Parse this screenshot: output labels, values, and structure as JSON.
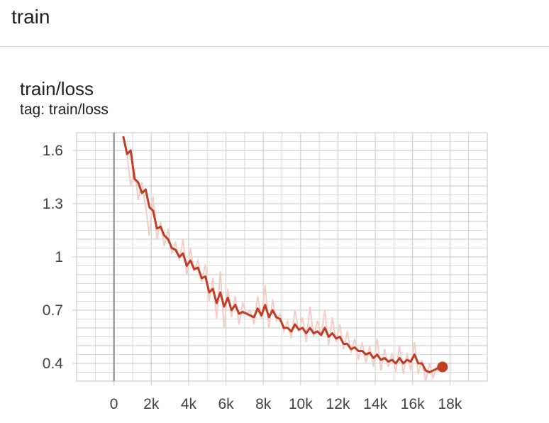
{
  "section": {
    "title": "train"
  },
  "card": {
    "title": "train/loss",
    "subtitle": "tag: train/loss"
  },
  "colors": {
    "smoothed_line": "#c23b22",
    "raw_line": "#f1cfc8",
    "grid": "#d0d0d0",
    "zero_axis": "#9e9e9e",
    "axis_box": "#cccccc"
  },
  "chart_data": {
    "type": "line",
    "title": "train/loss",
    "xlabel": "",
    "ylabel": "",
    "xlim": [
      -2000,
      20000
    ],
    "ylim": [
      0.3,
      1.7
    ],
    "x_ticks": [
      0,
      2000,
      4000,
      6000,
      8000,
      10000,
      12000,
      14000,
      16000,
      18000
    ],
    "x_tick_labels": [
      "0",
      "2k",
      "4k",
      "6k",
      "8k",
      "10k",
      "12k",
      "14k",
      "16k",
      "18k"
    ],
    "y_ticks": [
      0.4,
      0.7,
      1.0,
      1.3,
      1.6
    ],
    "y_tick_labels": [
      "0.4",
      "0.7",
      "1",
      "1.3",
      "1.6"
    ],
    "grid": true,
    "legend": "none",
    "series": [
      {
        "role": "raw",
        "x": [
          500,
          700,
          900,
          1100,
          1300,
          1500,
          1700,
          1900,
          2100,
          2300,
          2500,
          2700,
          2900,
          3100,
          3300,
          3500,
          3700,
          3900,
          4100,
          4300,
          4500,
          4700,
          4900,
          5100,
          5300,
          5500,
          5700,
          5900,
          6100,
          6300,
          6500,
          6700,
          6900,
          7100,
          7300,
          7500,
          7700,
          7900,
          8100,
          8300,
          8500,
          8700,
          8900,
          9100,
          9300,
          9500,
          9700,
          9900,
          10100,
          10300,
          10500,
          10700,
          10900,
          11100,
          11300,
          11500,
          11700,
          11900,
          12100,
          12300,
          12500,
          12700,
          12900,
          13100,
          13300,
          13500,
          13700,
          13900,
          14100,
          14300,
          14500,
          14700,
          14900,
          15100,
          15300,
          15500,
          15700,
          15900,
          16100,
          16300,
          16500,
          16700,
          16900,
          17100,
          17300,
          17500
        ],
        "values": [
          1.68,
          1.58,
          1.4,
          1.5,
          1.32,
          1.42,
          1.28,
          1.12,
          1.34,
          1.1,
          1.2,
          1.06,
          1.16,
          1.02,
          1.08,
          0.98,
          1.1,
          0.9,
          1.05,
          0.92,
          0.98,
          0.86,
          0.96,
          0.75,
          0.88,
          0.65,
          0.92,
          0.6,
          0.82,
          0.66,
          0.78,
          0.62,
          0.74,
          0.68,
          0.7,
          0.62,
          0.78,
          0.65,
          0.84,
          0.6,
          0.76,
          0.64,
          0.68,
          0.58,
          0.64,
          0.54,
          0.7,
          0.58,
          0.66,
          0.52,
          0.72,
          0.55,
          0.64,
          0.56,
          0.7,
          0.5,
          0.66,
          0.52,
          0.62,
          0.48,
          0.58,
          0.46,
          0.54,
          0.42,
          0.52,
          0.4,
          0.5,
          0.38,
          0.54,
          0.36,
          0.48,
          0.38,
          0.46,
          0.35,
          0.5,
          0.34,
          0.46,
          0.36,
          0.52,
          0.34,
          0.42,
          0.3,
          0.4,
          0.32,
          0.38,
          0.37
        ]
      },
      {
        "role": "smoothed",
        "x": [
          500,
          700,
          900,
          1100,
          1300,
          1500,
          1700,
          1900,
          2100,
          2300,
          2500,
          2700,
          2900,
          3100,
          3300,
          3500,
          3700,
          3900,
          4100,
          4300,
          4500,
          4700,
          4900,
          5100,
          5300,
          5500,
          5700,
          5900,
          6100,
          6300,
          6500,
          6700,
          6900,
          7100,
          7300,
          7500,
          7700,
          7900,
          8100,
          8300,
          8500,
          8700,
          8900,
          9100,
          9300,
          9500,
          9700,
          9900,
          10100,
          10300,
          10500,
          10700,
          10900,
          11100,
          11300,
          11500,
          11700,
          11900,
          12100,
          12300,
          12500,
          12700,
          12900,
          13100,
          13300,
          13500,
          13700,
          13900,
          14100,
          14300,
          14500,
          14700,
          14900,
          15100,
          15300,
          15500,
          15700,
          15900,
          16100,
          16300,
          16500,
          16700,
          16900,
          17100,
          17300,
          17500
        ],
        "values": [
          1.68,
          1.58,
          1.6,
          1.44,
          1.42,
          1.36,
          1.38,
          1.28,
          1.26,
          1.16,
          1.17,
          1.12,
          1.1,
          1.05,
          1.04,
          1.0,
          1.02,
          0.95,
          0.98,
          0.93,
          0.94,
          0.88,
          0.89,
          0.8,
          0.82,
          0.74,
          0.8,
          0.72,
          0.77,
          0.7,
          0.73,
          0.68,
          0.69,
          0.68,
          0.67,
          0.66,
          0.71,
          0.67,
          0.73,
          0.66,
          0.7,
          0.66,
          0.65,
          0.6,
          0.6,
          0.58,
          0.62,
          0.59,
          0.6,
          0.57,
          0.6,
          0.57,
          0.58,
          0.56,
          0.6,
          0.55,
          0.57,
          0.54,
          0.55,
          0.51,
          0.51,
          0.48,
          0.49,
          0.47,
          0.47,
          0.45,
          0.46,
          0.43,
          0.45,
          0.42,
          0.43,
          0.41,
          0.42,
          0.4,
          0.43,
          0.4,
          0.42,
          0.41,
          0.45,
          0.4,
          0.4,
          0.36,
          0.35,
          0.36,
          0.37,
          0.38
        ]
      }
    ],
    "marker": {
      "x": 17600,
      "y": 0.38
    }
  }
}
